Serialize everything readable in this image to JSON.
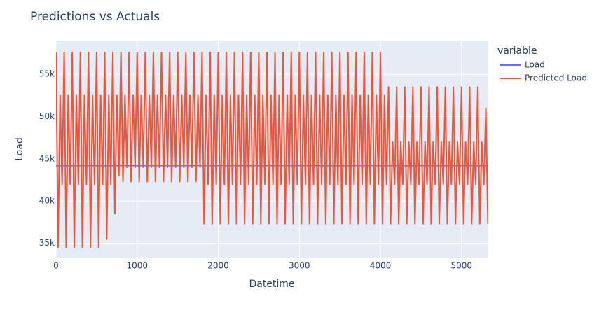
{
  "chart_data": {
    "type": "line",
    "title": "Predictions vs Actuals",
    "x_label": "Datetime",
    "y_label": "Load",
    "legend_title": "variable",
    "legend": "right",
    "grid": true,
    "xlim": [
      0,
      5330
    ],
    "xticks": [
      0,
      1000,
      2000,
      3000,
      4000,
      5000
    ],
    "ylim": [
      33300,
      59000
    ],
    "yticks": [
      {
        "value": 35000,
        "label": "35k"
      },
      {
        "value": 40000,
        "label": "40k"
      },
      {
        "value": 45000,
        "label": "45k"
      },
      {
        "value": 50000,
        "label": "50k"
      },
      {
        "value": 55000,
        "label": "55k"
      }
    ],
    "series": [
      {
        "name": "Load",
        "color": "#636efa",
        "x": [
          0,
          5325
        ],
        "values": [
          44200,
          44200
        ]
      },
      {
        "name": "Predicted Load",
        "color": "#ef553b",
        "x": [
          0,
          25,
          50,
          75,
          100,
          125,
          150,
          175,
          200,
          225,
          250,
          275,
          300,
          325,
          350,
          375,
          400,
          425,
          450,
          475,
          500,
          525,
          550,
          575,
          600,
          625,
          650,
          675,
          700,
          725,
          750,
          775,
          800,
          825,
          850,
          875,
          900,
          925,
          950,
          975,
          1000,
          1025,
          1050,
          1075,
          1100,
          1125,
          1150,
          1175,
          1200,
          1225,
          1250,
          1275,
          1300,
          1325,
          1350,
          1375,
          1400,
          1425,
          1450,
          1475,
          1500,
          1525,
          1550,
          1575,
          1600,
          1625,
          1650,
          1675,
          1700,
          1725,
          1750,
          1775,
          1800,
          1825,
          1850,
          1875,
          1900,
          1925,
          1950,
          1975,
          2000,
          2025,
          2050,
          2075,
          2100,
          2125,
          2150,
          2175,
          2200,
          2225,
          2250,
          2275,
          2300,
          2325,
          2350,
          2375,
          2400,
          2425,
          2450,
          2475,
          2500,
          2525,
          2550,
          2575,
          2600,
          2625,
          2650,
          2675,
          2700,
          2725,
          2750,
          2775,
          2800,
          2825,
          2850,
          2875,
          2900,
          2925,
          2950,
          2975,
          3000,
          3025,
          3050,
          3075,
          3100,
          3125,
          3150,
          3175,
          3200,
          3225,
          3250,
          3275,
          3300,
          3325,
          3350,
          3375,
          3400,
          3425,
          3450,
          3475,
          3500,
          3525,
          3550,
          3575,
          3600,
          3625,
          3650,
          3675,
          3700,
          3725,
          3750,
          3775,
          3800,
          3825,
          3850,
          3875,
          3900,
          3925,
          3950,
          3975,
          4000,
          4025,
          4050,
          4075,
          4100,
          4125,
          4150,
          4175,
          4200,
          4225,
          4250,
          4275,
          4300,
          4325,
          4350,
          4375,
          4400,
          4425,
          4450,
          4475,
          4500,
          4525,
          4550,
          4575,
          4600,
          4625,
          4650,
          4675,
          4700,
          4725,
          4750,
          4775,
          4800,
          4825,
          4850,
          4875,
          4900,
          4925,
          4950,
          4975,
          5000,
          5025,
          5050,
          5075,
          5100,
          5125,
          5150,
          5175,
          5200,
          5225,
          5250,
          5275,
          5300,
          5325
        ],
        "values": [
          57600,
          34500,
          52500,
          42000,
          57600,
          34500,
          52500,
          42000,
          57600,
          34500,
          52500,
          42000,
          57600,
          34500,
          52500,
          42000,
          57600,
          34500,
          52500,
          42000,
          57600,
          34500,
          52500,
          42000,
          57600,
          35500,
          52500,
          42000,
          57600,
          38500,
          52500,
          43000,
          57600,
          42300,
          52500,
          44000,
          57600,
          42300,
          52500,
          44000,
          57600,
          42300,
          52500,
          44000,
          57600,
          42300,
          52500,
          44000,
          57600,
          42300,
          52500,
          44000,
          57600,
          42300,
          52500,
          44000,
          57600,
          42300,
          52500,
          44000,
          57600,
          42300,
          52500,
          44000,
          57600,
          42300,
          52500,
          44000,
          57600,
          42300,
          52500,
          44000,
          57600,
          37300,
          52500,
          42000,
          57600,
          37300,
          52500,
          42000,
          57600,
          37300,
          52500,
          42000,
          57600,
          37300,
          52500,
          42000,
          57600,
          37300,
          52500,
          42000,
          57600,
          37300,
          52500,
          42000,
          57600,
          37300,
          52500,
          42000,
          57600,
          37300,
          52500,
          42000,
          57600,
          37300,
          52500,
          42000,
          57600,
          37300,
          52500,
          42000,
          57600,
          37300,
          52500,
          42000,
          57600,
          37300,
          52500,
          42000,
          57600,
          37300,
          52500,
          42000,
          57600,
          37300,
          52500,
          42000,
          57600,
          37300,
          52500,
          42000,
          57600,
          37300,
          52500,
          42000,
          57600,
          37300,
          52500,
          42000,
          57600,
          37300,
          52500,
          42000,
          57600,
          37300,
          52500,
          42000,
          57600,
          37300,
          52500,
          42000,
          57600,
          37300,
          52500,
          42000,
          57600,
          37300,
          52500,
          42000,
          57600,
          37300,
          52500,
          42000,
          53500,
          37300,
          47000,
          42000,
          53500,
          37300,
          47000,
          42000,
          53500,
          37300,
          47000,
          42000,
          53500,
          37300,
          47000,
          42000,
          53500,
          37300,
          47000,
          42000,
          53500,
          37300,
          47000,
          42000,
          53500,
          37300,
          47000,
          42000,
          53500,
          37300,
          47000,
          42000,
          53500,
          37300,
          47000,
          42000,
          53500,
          37300,
          47000,
          42000,
          53500,
          37300,
          47000,
          42000,
          53500,
          37300,
          47000,
          42000,
          51000,
          37300
        ]
      }
    ]
  }
}
